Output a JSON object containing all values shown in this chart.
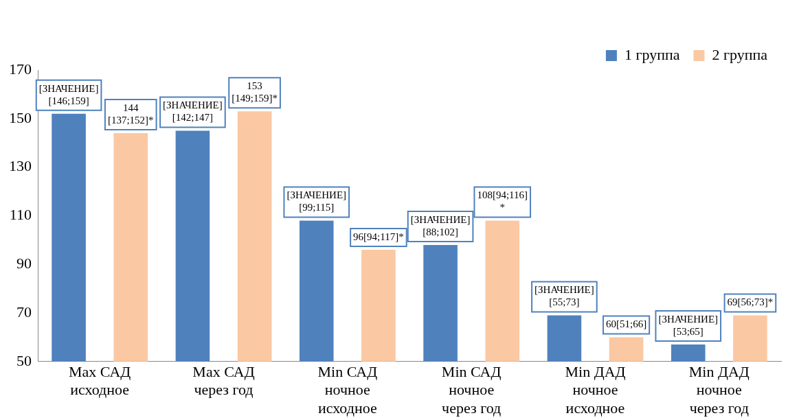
{
  "chart_data": {
    "type": "bar",
    "categories": [
      "Max САД\nисходное",
      "Max САД\nчерез год",
      "Min САД\nночное\nисходное",
      "Min САД\nночное\nчерез год",
      "Min ДАД\nночное\nисходное",
      "Min ДАД\nночное\nчерез год"
    ],
    "series": [
      {
        "name": "1 группа",
        "color": "#4f81bd",
        "values": [
          152,
          145,
          108,
          98,
          69,
          57
        ],
        "value_labels": [
          "[ЗНАЧЕНИЕ][146;159]",
          "[ЗНАЧЕНИЕ][142;147]",
          "[ЗНАЧЕНИЕ][99;115]",
          "[ЗНАЧЕНИЕ][88;102]",
          "[ЗНАЧЕНИЕ][55;73]",
          "[ЗНАЧЕНИЕ][53;65]"
        ]
      },
      {
        "name": "2 группа",
        "color": "#fac8a3",
        "values": [
          144,
          153,
          96,
          108,
          60,
          69
        ],
        "value_labels": [
          "144[137;152]*",
          "153[149;159]*",
          "96[94;117]*",
          "108[94;116]*",
          "60[51;66]",
          "69[56;73]*"
        ]
      }
    ],
    "ylim": [
      50,
      170
    ],
    "yticks": [
      50,
      70,
      90,
      110,
      130,
      150,
      170
    ],
    "grid": false,
    "legend": "top right"
  }
}
